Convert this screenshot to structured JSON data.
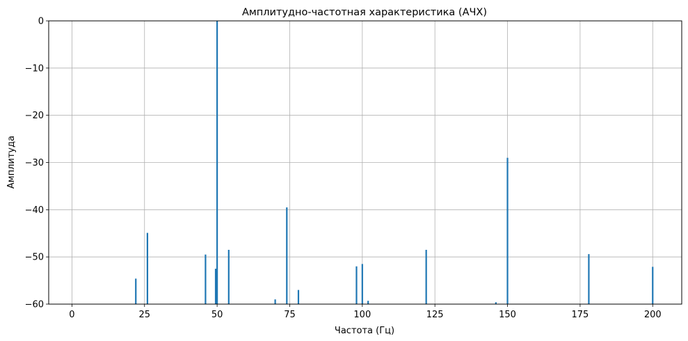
{
  "chart_data": {
    "type": "line",
    "title": "Амплитудно-частотная характеристика (АЧХ)",
    "xlabel": "Частота (Гц)",
    "ylabel": "Амплитуда",
    "xlim": [
      -8,
      210
    ],
    "ylim": [
      -60,
      0
    ],
    "xticks": [
      0,
      25,
      50,
      75,
      100,
      125,
      150,
      175,
      200
    ],
    "yticks": [
      0,
      -10,
      -20,
      -30,
      -40,
      -50,
      -60
    ],
    "grid": true,
    "series_color": "#1f77b4",
    "series": [
      {
        "peaks": [
          {
            "x": 22,
            "y": -54.6
          },
          {
            "x": 26,
            "y": -44.9
          },
          {
            "x": 46,
            "y": -49.5
          },
          {
            "x": 49.5,
            "y": -52.5
          },
          {
            "x": 50,
            "y": 0
          },
          {
            "x": 54,
            "y": -48.5
          },
          {
            "x": 70,
            "y": -59.0
          },
          {
            "x": 74,
            "y": -39.5
          },
          {
            "x": 78,
            "y": -57.0
          },
          {
            "x": 98,
            "y": -52.0
          },
          {
            "x": 100,
            "y": -51.5
          },
          {
            "x": 102,
            "y": -59.3
          },
          {
            "x": 122,
            "y": -48.5
          },
          {
            "x": 146,
            "y": -59.6
          },
          {
            "x": 150,
            "y": -29.0
          },
          {
            "x": 178,
            "y": -49.4
          },
          {
            "x": 200,
            "y": -52.1
          }
        ]
      }
    ]
  }
}
